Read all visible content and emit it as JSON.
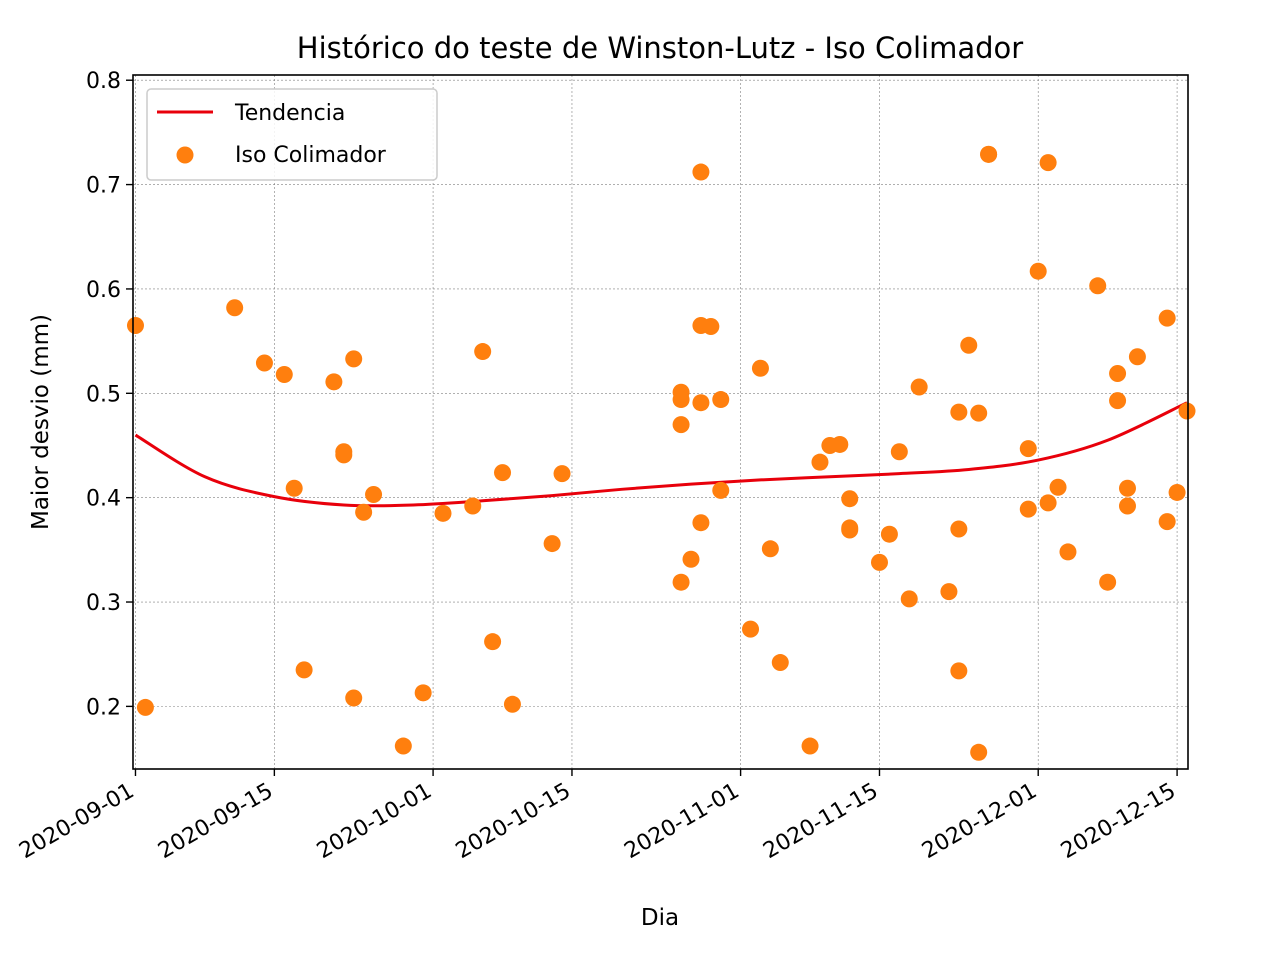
{
  "chart_data": {
    "type": "scatter",
    "title": "Histórico do teste de Winston-Lutz - Iso Colimador",
    "xlabel": "Dia",
    "ylabel": "Maior desvio (mm)",
    "x_ticks": [
      "2020-09-01",
      "2020-09-15",
      "2020-10-01",
      "2020-10-15",
      "2020-11-01",
      "2020-11-15",
      "2020-12-01",
      "2020-12-15"
    ],
    "y_ticks": [
      "0.2",
      "0.3",
      "0.4",
      "0.5",
      "0.6",
      "0.7",
      "0.8"
    ],
    "xlim": [
      "2020-09-01",
      "2020-12-16"
    ],
    "ylim": [
      0.14,
      0.805
    ],
    "grid": true,
    "legend_position": "top-left",
    "colors": {
      "scatter": "#ff7f0e",
      "trend": "#e8000b"
    },
    "series": [
      {
        "name": "Tendencia",
        "type": "line",
        "x": [
          "2020-09-01",
          "2020-09-08",
          "2020-09-15",
          "2020-09-22",
          "2020-09-29",
          "2020-10-06",
          "2020-10-13",
          "2020-10-20",
          "2020-10-27",
          "2020-11-03",
          "2020-11-10",
          "2020-11-17",
          "2020-11-24",
          "2020-12-01",
          "2020-12-08",
          "2020-12-16"
        ],
        "y": [
          0.46,
          0.42,
          0.401,
          0.393,
          0.393,
          0.397,
          0.402,
          0.408,
          0.413,
          0.417,
          0.42,
          0.423,
          0.427,
          0.436,
          0.455,
          0.491
        ]
      },
      {
        "name": "Iso Colimador",
        "type": "scatter",
        "x": [
          "2020-09-01",
          "2020-09-02",
          "2020-09-11",
          "2020-09-14",
          "2020-09-16",
          "2020-09-17",
          "2020-09-18",
          "2020-09-21",
          "2020-09-22",
          "2020-09-22",
          "2020-09-23",
          "2020-09-23",
          "2020-09-24",
          "2020-09-25",
          "2020-09-28",
          "2020-09-30",
          "2020-10-02",
          "2020-10-05",
          "2020-10-06",
          "2020-10-07",
          "2020-10-08",
          "2020-10-09",
          "2020-10-13",
          "2020-10-14",
          "2020-10-26",
          "2020-10-26",
          "2020-10-26",
          "2020-10-26",
          "2020-10-27",
          "2020-10-28",
          "2020-10-28",
          "2020-10-28",
          "2020-10-28",
          "2020-10-29",
          "2020-10-30",
          "2020-10-30",
          "2020-11-02",
          "2020-11-03",
          "2020-11-04",
          "2020-11-05",
          "2020-11-08",
          "2020-11-09",
          "2020-11-10",
          "2020-11-11",
          "2020-11-12",
          "2020-11-12",
          "2020-11-12",
          "2020-11-15",
          "2020-11-16",
          "2020-11-17",
          "2020-11-18",
          "2020-11-19",
          "2020-11-22",
          "2020-11-23",
          "2020-11-23",
          "2020-11-23",
          "2020-11-24",
          "2020-11-25",
          "2020-11-25",
          "2020-11-26",
          "2020-11-26",
          "2020-11-30",
          "2020-11-30",
          "2020-12-01",
          "2020-12-02",
          "2020-12-02",
          "2020-12-03",
          "2020-12-04",
          "2020-12-07",
          "2020-12-08",
          "2020-12-09",
          "2020-12-09",
          "2020-12-10",
          "2020-12-10",
          "2020-12-11",
          "2020-12-14",
          "2020-12-14",
          "2020-12-15",
          "2020-12-16"
        ],
        "y": [
          0.565,
          0.199,
          0.582,
          0.529,
          0.518,
          0.409,
          0.235,
          0.511,
          0.444,
          0.441,
          0.533,
          0.208,
          0.386,
          0.403,
          0.162,
          0.213,
          0.385,
          0.392,
          0.54,
          0.262,
          0.424,
          0.202,
          0.356,
          0.423,
          0.501,
          0.494,
          0.47,
          0.319,
          0.341,
          0.712,
          0.565,
          0.491,
          0.376,
          0.564,
          0.494,
          0.407,
          0.274,
          0.524,
          0.351,
          0.242,
          0.162,
          0.434,
          0.45,
          0.451,
          0.399,
          0.369,
          0.371,
          0.338,
          0.365,
          0.444,
          0.303,
          0.506,
          0.31,
          0.482,
          0.37,
          0.234,
          0.546,
          0.156,
          0.481,
          0.729,
          0.729,
          0.447,
          0.389,
          0.617,
          0.721,
          0.395,
          0.41,
          0.348,
          0.603,
          0.319,
          0.519,
          0.493,
          0.409,
          0.392,
          0.535,
          0.572,
          0.377,
          0.405,
          0.483
        ]
      }
    ]
  }
}
